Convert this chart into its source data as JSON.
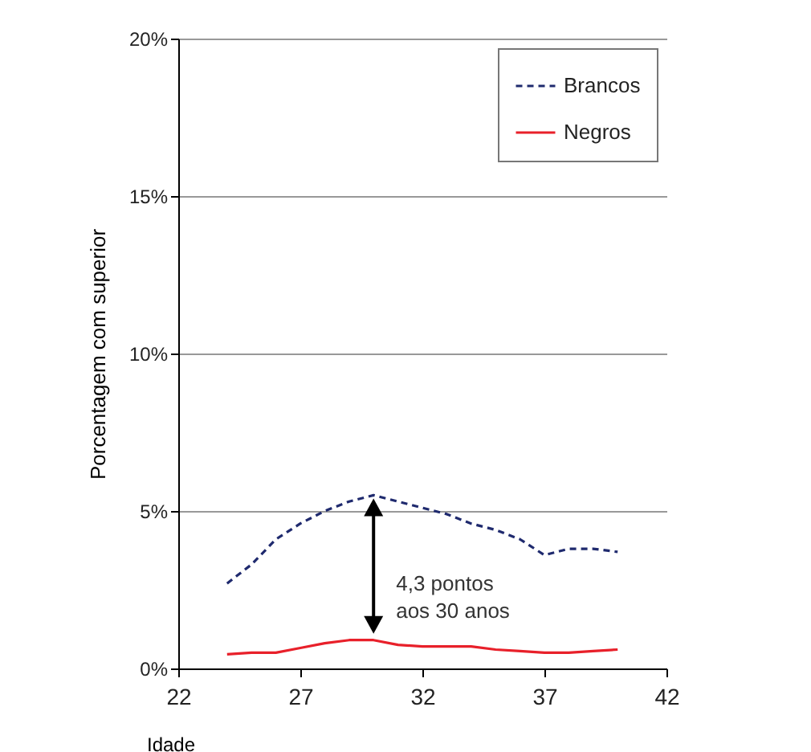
{
  "chart_data": {
    "type": "line",
    "x": [
      24,
      25,
      26,
      27,
      28,
      29,
      30,
      31,
      32,
      33,
      34,
      35,
      36,
      37,
      38,
      39,
      40
    ],
    "series": [
      {
        "name": "Brancos",
        "color": "#1f2a6e",
        "line_style": "dashed",
        "values": [
          2.7,
          3.3,
          4.1,
          4.6,
          5.0,
          5.3,
          5.5,
          5.3,
          5.1,
          4.9,
          4.6,
          4.4,
          4.1,
          3.6,
          3.8,
          3.8,
          3.7
        ]
      },
      {
        "name": "Negros",
        "color": "#e8202a",
        "line_style": "solid",
        "values": [
          0.45,
          0.5,
          0.5,
          0.65,
          0.8,
          0.9,
          0.9,
          0.75,
          0.7,
          0.7,
          0.7,
          0.6,
          0.55,
          0.5,
          0.5,
          0.55,
          0.6
        ]
      }
    ],
    "xlabel": "Idade",
    "ylabel": "Porcentagem com superior",
    "xlim": [
      22,
      42
    ],
    "xticks": [
      22,
      27,
      32,
      37,
      42
    ],
    "ylim": [
      0,
      20
    ],
    "yticks": [
      {
        "value": 0,
        "label": "0%"
      },
      {
        "value": 5,
        "label": "5%"
      },
      {
        "value": 10,
        "label": "10%"
      },
      {
        "value": 15,
        "label": "15%"
      },
      {
        "value": 20,
        "label": "20%"
      }
    ],
    "grid": "y",
    "legend": "top right",
    "marker": "none",
    "annotations": [
      "4,3 pontos\naos 30 anos"
    ]
  }
}
